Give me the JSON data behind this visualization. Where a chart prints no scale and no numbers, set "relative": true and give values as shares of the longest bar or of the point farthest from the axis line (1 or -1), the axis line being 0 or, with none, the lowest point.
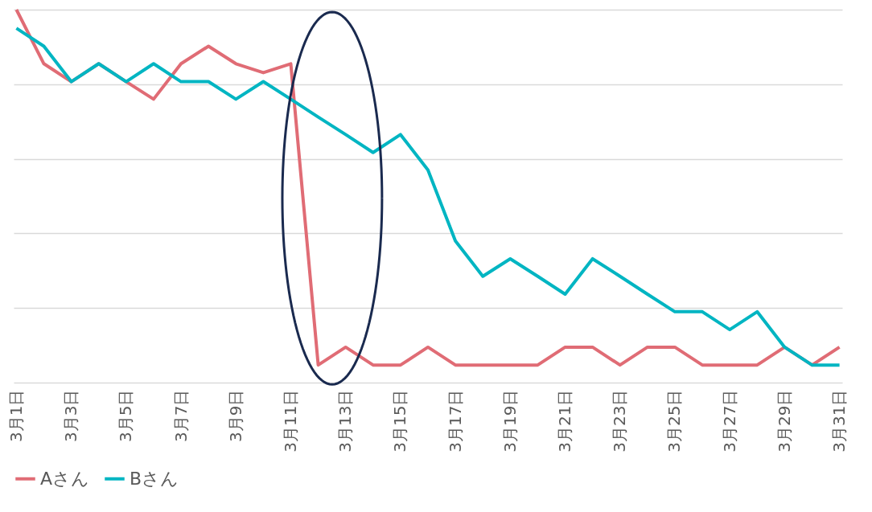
{
  "chart_data": {
    "type": "line",
    "relative": true,
    "grid": "y",
    "legend": "bottom",
    "line_style": "solid",
    "marker": "none",
    "categories": [
      "3月1日",
      null,
      "3月3日",
      null,
      "3月5日",
      null,
      "3月7日",
      null,
      "3月9日",
      null,
      "3月11日",
      null,
      "3月13日",
      null,
      "3月15日",
      null,
      "3月17日",
      null,
      "3月19日",
      null,
      "3月21日",
      null,
      "3月23日",
      null,
      "3月25日",
      null,
      "3月27日",
      null,
      "3月29日",
      null,
      "3月31日"
    ],
    "series": [
      {
        "name": "Aさん",
        "color": "#e06c75",
        "values": [
          1,
          0.855,
          0.807,
          0.855,
          0.807,
          0.76,
          0.855,
          0.902,
          0.855,
          0.831,
          0.855,
          0.047,
          0.095,
          0.047,
          0.047,
          0.095,
          0.047,
          0.047,
          0.047,
          0.047,
          0.095,
          0.095,
          0.047,
          0.095,
          0.095,
          0.047,
          0.047,
          0.047,
          0.095,
          0.047,
          0.095
        ]
      },
      {
        "name": "Bさん",
        "color": "#00b5c2",
        "values": [
          0.95,
          0.902,
          0.807,
          0.855,
          0.807,
          0.855,
          0.807,
          0.807,
          0.76,
          0.807,
          0.76,
          0.712,
          0.665,
          0.617,
          0.665,
          0.57,
          0.38,
          0.285,
          0.332,
          0.285,
          0.237,
          0.332,
          0.285,
          0.237,
          0.19,
          0.19,
          0.142,
          0.19,
          0.095,
          0.047,
          0.047
        ]
      }
    ]
  }
}
